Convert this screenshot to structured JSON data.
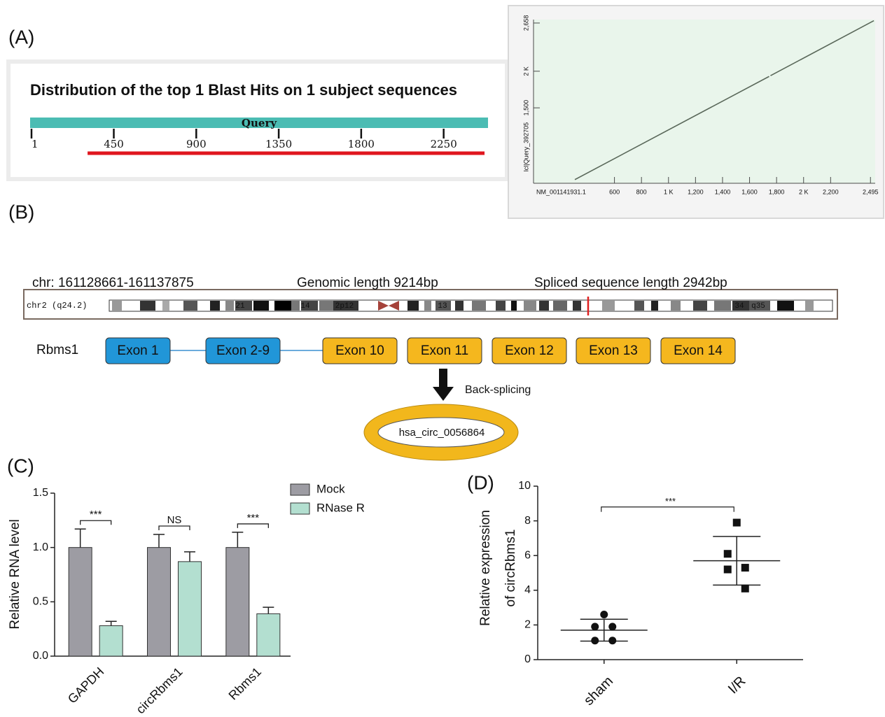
{
  "panel_labels": [
    "(A)",
    "(B)",
    "(C)",
    "(D)"
  ],
  "chart_data": [
    {
      "type": "blast",
      "title": "Distribution of the top 1 Blast Hits on 1 subject sequences",
      "bar_label": "Query",
      "xlim": [
        1,
        2492
      ],
      "xticks": [
        1,
        450,
        900,
        1350,
        1800,
        2250
      ],
      "values": [
        307,
        2473
      ],
      "bar_color": "#4bbcb3",
      "color": "#e0161e"
    },
    {
      "type": "line",
      "x_label": "NM_001141931.1",
      "y_label": "lcl|Query_392705",
      "xlim": [
        1,
        2530
      ],
      "ylim": [
        470,
        2705
      ],
      "xticks": [
        600,
        800,
        {
          "value": 1000,
          "label": "1 K"
        },
        {
          "value": 1200,
          "label": "1,200"
        },
        {
          "value": 1400,
          "label": "1,400"
        },
        {
          "value": 1600,
          "label": "1,600"
        },
        {
          "value": 1800,
          "label": "1,800"
        },
        {
          "value": 2000,
          "label": "2 K"
        },
        {
          "value": 2200,
          "label": "2,200"
        },
        {
          "value": 2495,
          "label": "2,495"
        }
      ],
      "yticks": [
        {
          "value": 1500,
          "label": "1,500"
        },
        {
          "value": 2000,
          "label": "2 K"
        },
        {
          "value": 2658,
          "label": "2,658"
        }
      ],
      "series": [
        {
          "x": [
            307,
            1745,
            1750,
            1755,
            2520
          ],
          "values": [
            520,
            1929,
            null,
            1939,
            2690
          ],
          "color": "#5a685a"
        }
      ]
    },
    {
      "type": "bar",
      "y_label": "Relative RNA level",
      "categories": [
        "GAPDH",
        "circRbms1",
        "Rbms1"
      ],
      "series": [
        {
          "name": "Mock",
          "color": "#9d9ca3",
          "values": [
            1.0,
            1.0,
            1.0
          ],
          "errors": [
            0.17,
            0.12,
            0.14
          ]
        },
        {
          "name": "RNase R",
          "color": "#b3dfd0",
          "values": [
            0.28,
            0.87,
            0.39
          ],
          "errors": [
            0.04,
            0.09,
            0.06
          ]
        }
      ],
      "ylim": [
        0,
        1.5
      ],
      "yticks": [
        {
          "value": 0,
          "label": "0.0"
        },
        {
          "value": 0.5,
          "label": "0.5"
        },
        {
          "value": 1,
          "label": "1.0"
        },
        {
          "value": 1.5,
          "label": "1.5"
        }
      ],
      "annotations": [
        "***",
        "NS",
        "***"
      ]
    },
    {
      "type": "scatter",
      "y_label": [
        "Relative expression",
        "of circRbms1"
      ],
      "categories": [
        "sham",
        "I/R"
      ],
      "groups": [
        {
          "values": [
            2.6,
            1.9,
            1.9,
            1.1,
            1.1
          ],
          "mean": 1.7,
          "sd": 0.63,
          "marker": "circle"
        },
        {
          "values": [
            7.9,
            6.1,
            5.3,
            5.2,
            4.1
          ],
          "mean": 5.7,
          "sd": 1.4,
          "marker": "square"
        }
      ],
      "ylim": [
        0,
        10
      ],
      "yticks": [
        0,
        2,
        4,
        6,
        8,
        10
      ],
      "annotations": [
        "***"
      ]
    }
  ],
  "genome": {
    "coords": "chr: 161128661-161137875",
    "genomic_length": "Genomic length 9214bp",
    "spliced_length": "Spliced sequence length 2942bp",
    "chromosome": "chr2 (q24.2)",
    "bands": [
      "21",
      "14",
      "2p12",
      "13",
      "34",
      "q35"
    ],
    "gene": "Rbms1",
    "exons": [
      {
        "label": "Exon 1",
        "color": "#2196d8"
      },
      {
        "label": "Exon 2-9",
        "color": "#2196d8"
      },
      {
        "label": "Exon 10",
        "color": "#f5b71e"
      },
      {
        "label": "Exon 11",
        "color": "#f5b71e"
      },
      {
        "label": "Exon 12",
        "color": "#f5b71e"
      },
      {
        "label": "Exon 13",
        "color": "#f5b71e"
      },
      {
        "label": "Exon 14",
        "color": "#f5b71e"
      }
    ],
    "arrow_label": "Back-splicing",
    "circ": "hsa_circ_0056864"
  }
}
